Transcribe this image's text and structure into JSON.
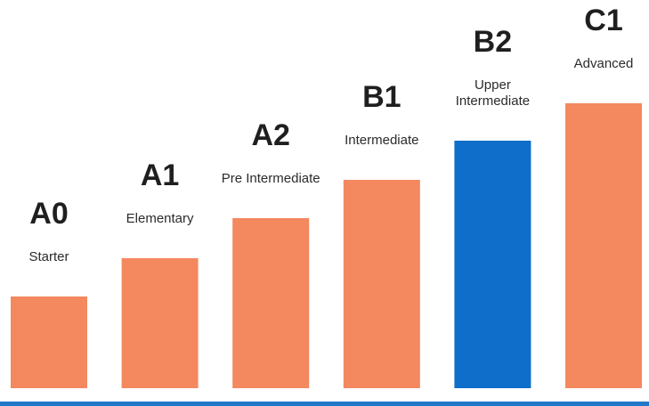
{
  "chart_data": {
    "type": "bar",
    "title": "",
    "xlabel": "",
    "ylabel": "",
    "ylim": [
      0,
      330
    ],
    "grid": false,
    "legend": "none",
    "bars": [
      {
        "code": "A0",
        "label_lines": [
          "Starter"
        ],
        "value": 103,
        "color": "#f4885f"
      },
      {
        "code": "A1",
        "label_lines": [
          "Elementary"
        ],
        "value": 146,
        "color": "#f4885f"
      },
      {
        "code": "A2",
        "label_lines": [
          "Pre Intermediate"
        ],
        "value": 191,
        "color": "#f4885f"
      },
      {
        "code": "B1",
        "label_lines": [
          "Intermediate"
        ],
        "value": 234,
        "color": "#f4885f"
      },
      {
        "code": "B2",
        "label_lines": [
          "Upper",
          "Intermediate"
        ],
        "value": 278,
        "color": "#0f6ec9"
      },
      {
        "code": "C1",
        "label_lines": [
          "Advanced"
        ],
        "value": 320,
        "color": "#f4885f"
      }
    ],
    "baseline_color": "#1f78c8"
  }
}
